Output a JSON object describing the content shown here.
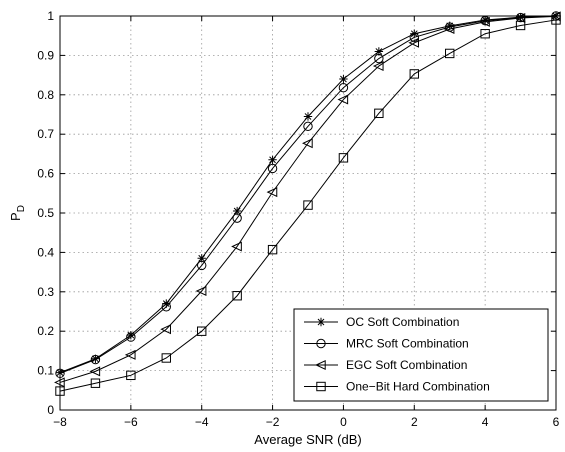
{
  "chart_data": {
    "type": "line",
    "title": "",
    "xlabel": "Average SNR (dB)",
    "ylabel": "P",
    "ylabel_sub": "D",
    "xlim": [
      -8,
      6
    ],
    "ylim": [
      0,
      1
    ],
    "xticks": [
      -8,
      -6,
      -4,
      -2,
      0,
      2,
      4,
      6
    ],
    "yticks": [
      0,
      0.1,
      0.2,
      0.3,
      0.4,
      0.5,
      0.6,
      0.7,
      0.8,
      0.9,
      1
    ],
    "grid": true,
    "legend_position": "bottom-right",
    "x": [
      -8,
      -7,
      -6,
      -5,
      -4,
      -3,
      -2,
      -1,
      0,
      1,
      2,
      3,
      4,
      5,
      6
    ],
    "series": [
      {
        "name": "OC Soft Combination",
        "marker": "star",
        "values": [
          0.095,
          0.13,
          0.19,
          0.27,
          0.385,
          0.505,
          0.635,
          0.745,
          0.84,
          0.91,
          0.955,
          0.975,
          0.99,
          0.997,
          1.0
        ]
      },
      {
        "name": "MRC Soft Combination",
        "marker": "circle",
        "values": [
          0.093,
          0.128,
          0.185,
          0.262,
          0.367,
          0.487,
          0.613,
          0.72,
          0.818,
          0.892,
          0.946,
          0.972,
          0.988,
          0.996,
          1.0
        ]
      },
      {
        "name": "EGC Soft Combination",
        "marker": "triangle-left",
        "values": [
          0.07,
          0.098,
          0.14,
          0.205,
          0.302,
          0.415,
          0.553,
          0.677,
          0.788,
          0.873,
          0.932,
          0.967,
          0.985,
          0.995,
          0.999
        ]
      },
      {
        "name": "One−Bit Hard Combination",
        "marker": "square",
        "values": [
          0.048,
          0.068,
          0.088,
          0.132,
          0.2,
          0.29,
          0.407,
          0.52,
          0.64,
          0.753,
          0.853,
          0.905,
          0.955,
          0.976,
          0.99
        ]
      }
    ]
  }
}
